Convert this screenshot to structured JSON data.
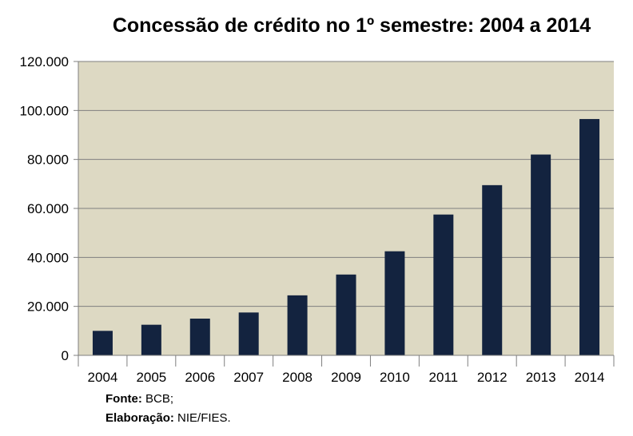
{
  "chart_data": {
    "type": "bar",
    "title": "Concessão de crédito no 1º semestre: 2004 a 2014",
    "xlabel": "",
    "ylabel": "",
    "categories": [
      "2004",
      "2005",
      "2006",
      "2007",
      "2008",
      "2009",
      "2010",
      "2011",
      "2012",
      "2013",
      "2014"
    ],
    "values": [
      10000,
      12500,
      15000,
      17500,
      24500,
      33000,
      42500,
      57500,
      69500,
      82000,
      96500
    ],
    "ylim": [
      0,
      120000
    ],
    "yticks": [
      0,
      20000,
      40000,
      60000,
      80000,
      100000,
      120000
    ],
    "ytick_labels": [
      "0",
      "20.000",
      "40.000",
      "60.000",
      "80.000",
      "100.000",
      "120.000"
    ],
    "grid": true,
    "legend": "none"
  },
  "colors": {
    "bar": "#13233f",
    "plot_background": "#ddd9c3",
    "grid": "#7f7f7f"
  },
  "source": {
    "fonte_label": "Fonte:",
    "fonte_value": "BCB;",
    "elaboracao_label": "Elaboração:",
    "elaboracao_value": "NIE/FIES."
  }
}
